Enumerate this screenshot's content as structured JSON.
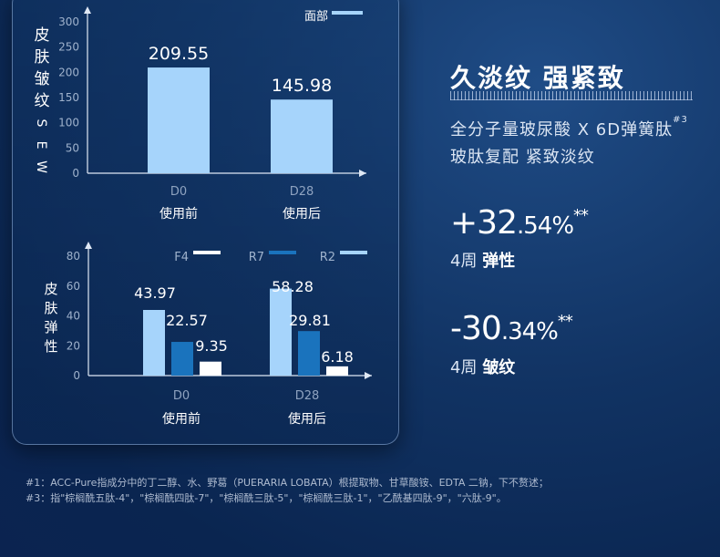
{
  "chart_data": [
    {
      "type": "bar",
      "ylabel": "皮肤皱纹SEW",
      "categories": [
        "D0",
        "D28"
      ],
      "category_sublabels": [
        "使用前",
        "使用后"
      ],
      "yticks": [
        0,
        50,
        100,
        150,
        200,
        250,
        300
      ],
      "ylim": [
        0,
        300
      ],
      "legend_position": "top-right",
      "series": [
        {
          "name": "面部",
          "color": "#a6d4fb",
          "values": [
            209.55,
            145.98
          ],
          "labels": [
            "209.55",
            "145.98"
          ]
        }
      ]
    },
    {
      "type": "bar",
      "ylabel": "皮肤弹性",
      "categories": [
        "D0",
        "D28"
      ],
      "category_sublabels": [
        "使用前",
        "使用后"
      ],
      "yticks": [
        0,
        20,
        40,
        60,
        80
      ],
      "ylim": [
        0,
        80
      ],
      "legend_position": "top",
      "series": [
        {
          "name": "R2",
          "color": "#a6d4fb",
          "values": [
            43.97,
            58.28
          ],
          "labels": [
            "43.97",
            "58.28"
          ]
        },
        {
          "name": "R7",
          "color": "#1a73bd",
          "values": [
            22.57,
            29.81
          ],
          "labels": [
            "22.57",
            "29.81"
          ]
        },
        {
          "name": "F4",
          "color": "#ffffff",
          "values": [
            9.35,
            6.18
          ],
          "labels": [
            "9.35",
            "6.18"
          ]
        }
      ],
      "legend_order": [
        "F4",
        "R7",
        "R2"
      ]
    }
  ],
  "right": {
    "title": "久淡纹 强紧致",
    "sub1": "全分子量玻尿酸 X 6D弹簧肽",
    "sub1_sup": "#3",
    "sub2": "玻肽复配 紧致淡纹",
    "stat1_big": "+32",
    "stat1_small": ".54%",
    "stat1_ast": "**",
    "stat1_label_pre": "4周",
    "stat1_label": "弹性",
    "stat2_big": "-30",
    "stat2_small": ".34%",
    "stat2_ast": "**",
    "stat2_label_pre": "4周",
    "stat2_label": "皱纹"
  },
  "footnotes": [
    "#1：ACC-Pure指成分中的丁二醇、水、野葛（PUERARIA LOBATA）根提取物、甘草酸铵、EDTA 二钠，下不赘述；",
    "#3：指\"棕榈酰五肽-4\"，\"棕榈酰四肽-7\"，\"棕榈酰三肽-5\"，\"棕榈酰三肽-1\"，\"乙酰基四肽-9\"，\"六肽-9\"。"
  ]
}
